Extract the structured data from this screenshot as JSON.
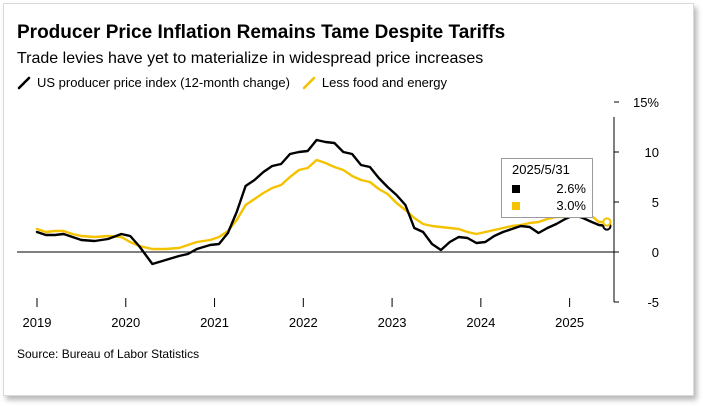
{
  "header": {
    "title": "Producer Price Inflation Remains Tame Despite Tariffs",
    "subtitle": "Trade levies have yet to materialize in widespread price increases"
  },
  "legend": {
    "items": [
      {
        "label": "US producer price index (12-month change)",
        "color": "#000000"
      },
      {
        "label": "Less food and energy",
        "color": "#F5C200"
      }
    ]
  },
  "source": "Source: Bureau of Labor Statistics",
  "tooltip": {
    "date": "2025/5/31",
    "values": [
      {
        "text": "2.6%",
        "color": "#000000"
      },
      {
        "text": "3.0%",
        "color": "#F5C200"
      }
    ]
  },
  "colors": {
    "background": "#ffffff",
    "series_ppi": "#000000",
    "series_core": "#F5C200",
    "axis": "#000000"
  },
  "chart_data": {
    "type": "line",
    "title": "Producer Price Inflation Remains Tame Despite Tariffs",
    "subtitle": "Trade levies have yet to materialize in widespread price increases",
    "xlim": [
      2018.95,
      2025.5
    ],
    "ylim": [
      -5,
      15
    ],
    "x_ticks": [
      2019,
      2020,
      2021,
      2022,
      2023,
      2024,
      2025
    ],
    "x_tick_labels": [
      "2019",
      "2020",
      "2021",
      "2022",
      "2023",
      "2024",
      "2025"
    ],
    "y_ticks": [
      15,
      10,
      5,
      0,
      -5
    ],
    "y_tick_labels": [
      "15%",
      "10",
      "5",
      "0",
      "-5"
    ],
    "grid": false,
    "legend_position": "top-left",
    "series": [
      {
        "name": "US producer price index (12-month change)",
        "color": "#000000",
        "points": [
          [
            2019.0,
            2.0
          ],
          [
            2019.1,
            1.7
          ],
          [
            2019.2,
            1.7
          ],
          [
            2019.3,
            1.8
          ],
          [
            2019.4,
            1.5
          ],
          [
            2019.5,
            1.2
          ],
          [
            2019.65,
            1.1
          ],
          [
            2019.8,
            1.3
          ],
          [
            2019.95,
            1.8
          ],
          [
            2020.05,
            1.6
          ],
          [
            2020.15,
            0.6
          ],
          [
            2020.3,
            -1.2
          ],
          [
            2020.45,
            -0.8
          ],
          [
            2020.6,
            -0.4
          ],
          [
            2020.7,
            -0.2
          ],
          [
            2020.8,
            0.3
          ],
          [
            2020.95,
            0.7
          ],
          [
            2021.05,
            0.8
          ],
          [
            2021.15,
            1.9
          ],
          [
            2021.25,
            4.0
          ],
          [
            2021.35,
            6.6
          ],
          [
            2021.45,
            7.2
          ],
          [
            2021.55,
            8.0
          ],
          [
            2021.65,
            8.6
          ],
          [
            2021.75,
            8.8
          ],
          [
            2021.85,
            9.8
          ],
          [
            2021.95,
            10.0
          ],
          [
            2022.05,
            10.1
          ],
          [
            2022.15,
            11.2
          ],
          [
            2022.25,
            11.0
          ],
          [
            2022.35,
            10.9
          ],
          [
            2022.45,
            10.0
          ],
          [
            2022.55,
            9.8
          ],
          [
            2022.65,
            8.7
          ],
          [
            2022.75,
            8.5
          ],
          [
            2022.85,
            7.4
          ],
          [
            2022.95,
            6.5
          ],
          [
            2023.05,
            5.7
          ],
          [
            2023.15,
            4.7
          ],
          [
            2023.25,
            2.4
          ],
          [
            2023.35,
            2.0
          ],
          [
            2023.45,
            0.8
          ],
          [
            2023.55,
            0.2
          ],
          [
            2023.65,
            1.0
          ],
          [
            2023.75,
            1.5
          ],
          [
            2023.85,
            1.4
          ],
          [
            2023.95,
            0.9
          ],
          [
            2024.05,
            1.0
          ],
          [
            2024.15,
            1.6
          ],
          [
            2024.25,
            2.0
          ],
          [
            2024.35,
            2.3
          ],
          [
            2024.45,
            2.6
          ],
          [
            2024.55,
            2.5
          ],
          [
            2024.65,
            1.9
          ],
          [
            2024.75,
            2.4
          ],
          [
            2024.85,
            2.8
          ],
          [
            2024.95,
            3.3
          ],
          [
            2025.05,
            3.7
          ],
          [
            2025.15,
            3.4
          ],
          [
            2025.25,
            3.0
          ],
          [
            2025.33,
            2.7
          ],
          [
            2025.42,
            2.6
          ]
        ]
      },
      {
        "name": "Less food and energy",
        "color": "#F5C200",
        "points": [
          [
            2019.0,
            2.3
          ],
          [
            2019.1,
            2.0
          ],
          [
            2019.2,
            2.1
          ],
          [
            2019.3,
            2.1
          ],
          [
            2019.4,
            1.8
          ],
          [
            2019.5,
            1.6
          ],
          [
            2019.65,
            1.5
          ],
          [
            2019.8,
            1.6
          ],
          [
            2019.95,
            1.5
          ],
          [
            2020.05,
            1.0
          ],
          [
            2020.15,
            0.6
          ],
          [
            2020.3,
            0.3
          ],
          [
            2020.45,
            0.3
          ],
          [
            2020.6,
            0.4
          ],
          [
            2020.7,
            0.7
          ],
          [
            2020.8,
            1.0
          ],
          [
            2020.95,
            1.2
          ],
          [
            2021.05,
            1.5
          ],
          [
            2021.15,
            2.1
          ],
          [
            2021.25,
            3.2
          ],
          [
            2021.35,
            4.7
          ],
          [
            2021.45,
            5.3
          ],
          [
            2021.55,
            5.9
          ],
          [
            2021.65,
            6.4
          ],
          [
            2021.75,
            6.7
          ],
          [
            2021.85,
            7.5
          ],
          [
            2021.95,
            8.2
          ],
          [
            2022.05,
            8.4
          ],
          [
            2022.15,
            9.2
          ],
          [
            2022.25,
            8.9
          ],
          [
            2022.35,
            8.5
          ],
          [
            2022.45,
            8.2
          ],
          [
            2022.55,
            7.6
          ],
          [
            2022.65,
            7.2
          ],
          [
            2022.75,
            7.0
          ],
          [
            2022.85,
            6.3
          ],
          [
            2022.95,
            5.8
          ],
          [
            2023.05,
            4.9
          ],
          [
            2023.15,
            4.2
          ],
          [
            2023.25,
            3.4
          ],
          [
            2023.35,
            2.8
          ],
          [
            2023.45,
            2.6
          ],
          [
            2023.55,
            2.5
          ],
          [
            2023.65,
            2.4
          ],
          [
            2023.75,
            2.3
          ],
          [
            2023.85,
            2.0
          ],
          [
            2023.95,
            1.8
          ],
          [
            2024.05,
            2.0
          ],
          [
            2024.15,
            2.2
          ],
          [
            2024.25,
            2.4
          ],
          [
            2024.35,
            2.6
          ],
          [
            2024.45,
            2.7
          ],
          [
            2024.55,
            2.9
          ],
          [
            2024.65,
            3.0
          ],
          [
            2024.75,
            3.3
          ],
          [
            2024.85,
            3.5
          ],
          [
            2024.95,
            3.5
          ],
          [
            2025.05,
            3.7
          ],
          [
            2025.15,
            3.8
          ],
          [
            2025.25,
            3.6
          ],
          [
            2025.33,
            3.0
          ],
          [
            2025.42,
            3.0
          ]
        ]
      }
    ],
    "tooltip_date": "2025/5/31",
    "tooltip_values": [
      2.6,
      3.0
    ]
  }
}
